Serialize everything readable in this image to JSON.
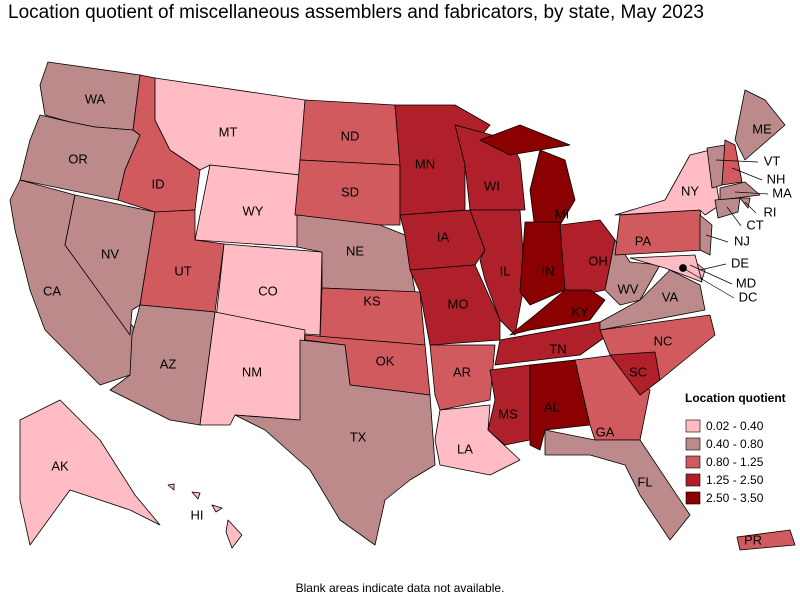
{
  "title": "Location quotient of miscellaneous assemblers and fabricators, by state, May 2023",
  "note": "Blank areas indicate data not available.",
  "legend": {
    "title": "Location quotient",
    "items": [
      {
        "label": "0.02 - 0.40",
        "color": "#ffbcc5"
      },
      {
        "label": "0.40 - 0.80",
        "color": "#bc8a8a"
      },
      {
        "label": "0.80 - 1.25",
        "color": "#d15a5f"
      },
      {
        "label": "1.25 - 2.50",
        "color": "#b0202a"
      },
      {
        "label": "2.50 - 3.50",
        "color": "#8b0000"
      }
    ]
  },
  "map": {
    "states": [
      "WA",
      "OR",
      "CA",
      "NV",
      "ID",
      "MT",
      "WY",
      "UT",
      "CO",
      "AZ",
      "NM",
      "ND",
      "SD",
      "NE",
      "KS",
      "OK",
      "TX",
      "MN",
      "IA",
      "MO",
      "AR",
      "LA",
      "WI",
      "IL",
      "MI",
      "IN",
      "OH",
      "KY",
      "TN",
      "MS",
      "AL",
      "GA",
      "FL",
      "SC",
      "NC",
      "VA",
      "WV",
      "PA",
      "NY",
      "NJ",
      "DE",
      "MD",
      "VT",
      "NH",
      "ME",
      "MA",
      "RI",
      "CT",
      "DC",
      "AK",
      "HI",
      "PR"
    ],
    "fills": [
      "#bc8a8a",
      "#bc8a8a",
      "#bc8a8a",
      "#bc8a8a",
      "#d15a5f",
      "#ffbcc5",
      "#ffbcc5",
      "#d15a5f",
      "#ffbcc5",
      "#bc8a8a",
      "#ffbcc5",
      "#d15a5f",
      "#d15a5f",
      "#bc8a8a",
      "#d15a5f",
      "#d15a5f",
      "#bc8a8a",
      "#b0202a",
      "#b0202a",
      "#b0202a",
      "#d15a5f",
      "#ffbcc5",
      "#b0202a",
      "#b0202a",
      "#8b0000",
      "#8b0000",
      "#b0202a",
      "#8b0000",
      "#b0202a",
      "#b0202a",
      "#8b0000",
      "#d15a5f",
      "#bc8a8a",
      "#b0202a",
      "#d15a5f",
      "#bc8a8a",
      "#bc8a8a",
      "#d15a5f",
      "#ffbcc5",
      "#bc8a8a",
      "#ffbcc5",
      "#ffbcc5",
      "#bc8a8a",
      "#d15a5f",
      "#bc8a8a",
      "#bc8a8a",
      "#bc8a8a",
      "#bc8a8a",
      "#ffbcc5",
      "#ffbcc5",
      "#ffbcc5",
      "#d15a5f"
    ]
  }
}
